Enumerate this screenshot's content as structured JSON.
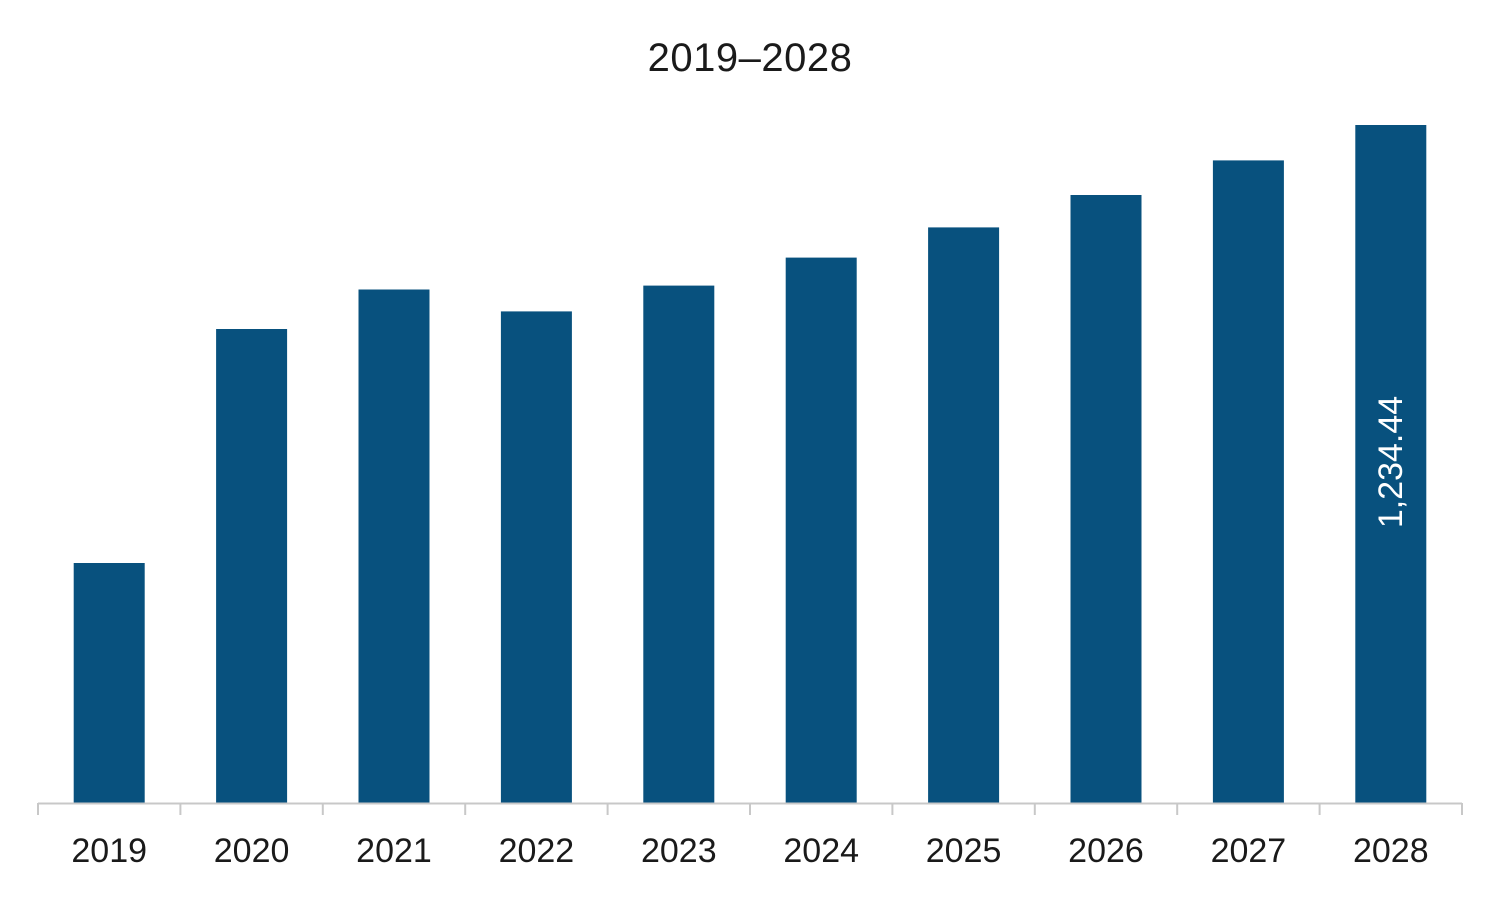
{
  "chart_data": {
    "type": "bar",
    "title": "2019–2028",
    "xlabel": "",
    "ylabel": "",
    "categories": [
      "2019",
      "2020",
      "2021",
      "2022",
      "2023",
      "2024",
      "2025",
      "2026",
      "2027",
      "2028"
    ],
    "values": [
      437.0,
      863.0,
      935.0,
      895.0,
      942.0,
      993.0,
      1048.0,
      1107.0,
      1170.0,
      1234.44
    ],
    "data_labels": [
      {
        "category": "2028",
        "text": "1,234.44"
      }
    ],
    "ylim": [
      0,
      1234.44
    ],
    "grid": false,
    "legend": "none",
    "bar_color": "#08517E",
    "axis_color": "#c8c8c8"
  }
}
